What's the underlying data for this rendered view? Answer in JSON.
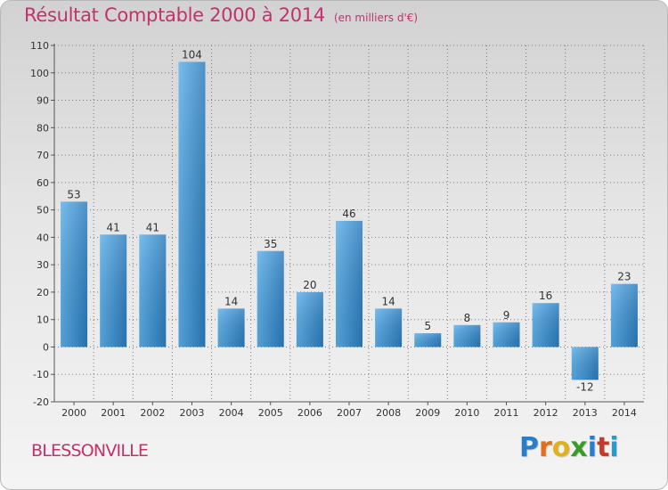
{
  "header": {
    "title": "Résultat Comptable 2000 à 2014",
    "subtitle": "(en milliers d'€)"
  },
  "footer": {
    "place": "BLESSONVILLE",
    "logo_letters": [
      {
        "ch": "P",
        "color": "#2a7ec9"
      },
      {
        "ch": "r",
        "color": "#e0701a"
      },
      {
        "ch": "o",
        "color": "#e0b21a"
      },
      {
        "ch": "x",
        "color": "#3a9a2a"
      },
      {
        "ch": "i",
        "color": "#2a7ec9"
      },
      {
        "ch": "t",
        "color": "#c23a2a"
      },
      {
        "ch": "i",
        "color": "#2a9ac9"
      }
    ]
  },
  "colors": {
    "bar_light": "#5aaee8",
    "bar_dark": "#2a7bbd",
    "accent": "#c0336b",
    "axis": "#555555",
    "grid": "#7a7a7a"
  },
  "chart_data": {
    "type": "bar",
    "title": "Résultat Comptable 2000 à 2014",
    "subtitle": "(en milliers d'€)",
    "categories": [
      "2000",
      "2001",
      "2002",
      "2003",
      "2004",
      "2005",
      "2006",
      "2007",
      "2008",
      "2009",
      "2010",
      "2011",
      "2012",
      "2013",
      "2014"
    ],
    "values": [
      53,
      41,
      41,
      104,
      14,
      35,
      20,
      46,
      14,
      5,
      8,
      9,
      16,
      -12,
      23
    ],
    "value_labels": [
      "53",
      "41",
      "41",
      "104",
      "14",
      "35",
      "20",
      "46",
      "14",
      "5",
      "8",
      "9",
      "16",
      "-12",
      "23"
    ],
    "yticks": [
      -20,
      -10,
      0,
      10,
      20,
      30,
      40,
      50,
      60,
      70,
      80,
      90,
      100,
      110
    ],
    "ytick_labels": [
      "-20",
      "-10",
      "0",
      "10",
      "20",
      "30",
      "40",
      "50",
      "60",
      "70",
      "80",
      "90",
      "100",
      "110"
    ],
    "ylim": [
      -20,
      110
    ],
    "xlabel": "",
    "ylabel": "",
    "grid": true
  }
}
